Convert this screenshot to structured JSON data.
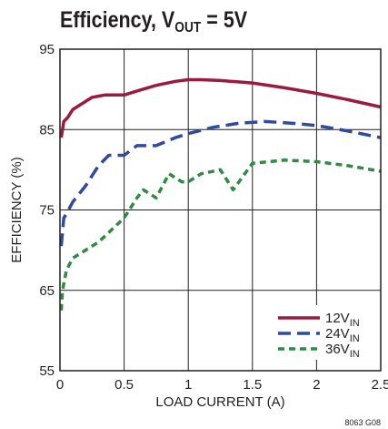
{
  "chart_data": {
    "type": "line",
    "title": {
      "main": "Efficiency, V",
      "sub": "OUT",
      "tail": " = 5V"
    },
    "xlabel": "LOAD CURRENT (A)",
    "ylabel": "EFFICIENCY (%)",
    "xlim": [
      0,
      2.5
    ],
    "ylim": [
      55,
      95
    ],
    "xticks": [
      0,
      0.5,
      1,
      1.5,
      2,
      2.5
    ],
    "xtick_labels": [
      "0",
      "0.5",
      "1",
      "1.5",
      "2",
      "2.5"
    ],
    "yticks": [
      55,
      65,
      75,
      85,
      95
    ],
    "ytick_labels": [
      "55",
      "65",
      "75",
      "85",
      "95"
    ],
    "grid": true,
    "legend_position": "bottom-right",
    "figure_code": "8063 G08",
    "series": [
      {
        "name": {
          "main": "12V",
          "sub": "IN"
        },
        "color": "#9b1b3f",
        "dash": "solid",
        "x": [
          0.01,
          0.03,
          0.06,
          0.1,
          0.15,
          0.25,
          0.35,
          0.5,
          0.6,
          0.75,
          0.9,
          1.0,
          1.1,
          1.25,
          1.5,
          1.75,
          2.0,
          2.25,
          2.5
        ],
        "y": [
          84.0,
          86.0,
          86.5,
          87.5,
          88.0,
          89.0,
          89.3,
          89.3,
          89.8,
          90.5,
          91.0,
          91.2,
          91.2,
          91.1,
          90.8,
          90.2,
          89.5,
          88.7,
          87.8
        ]
      },
      {
        "name": {
          "main": "24V",
          "sub": "IN"
        },
        "color": "#2f4b9b",
        "dash": "long",
        "x": [
          0.01,
          0.03,
          0.05,
          0.1,
          0.2,
          0.3,
          0.38,
          0.5,
          0.6,
          0.7,
          0.75,
          0.9,
          1.0,
          1.2,
          1.4,
          1.6,
          1.8,
          2.0,
          2.25,
          2.5
        ],
        "y": [
          70.5,
          74.0,
          74.5,
          76.0,
          78.0,
          80.5,
          81.8,
          81.8,
          83.0,
          83.0,
          83.0,
          84.0,
          84.5,
          85.3,
          85.8,
          86.0,
          85.8,
          85.5,
          84.8,
          84.0
        ]
      },
      {
        "name": {
          "main": "36V",
          "sub": "IN"
        },
        "color": "#2f8a45",
        "dash": "short",
        "x": [
          0.01,
          0.02,
          0.05,
          0.1,
          0.2,
          0.3,
          0.4,
          0.5,
          0.6,
          0.65,
          0.75,
          0.85,
          0.95,
          1.0,
          1.1,
          1.25,
          1.35,
          1.5,
          1.75,
          2.0,
          2.25,
          2.5
        ],
        "y": [
          62.5,
          65.0,
          67.5,
          69.0,
          70.0,
          71.0,
          72.5,
          74.0,
          76.5,
          77.5,
          76.5,
          79.5,
          78.5,
          78.5,
          79.5,
          80.0,
          77.5,
          80.8,
          81.2,
          81.0,
          80.5,
          79.8
        ]
      }
    ]
  }
}
